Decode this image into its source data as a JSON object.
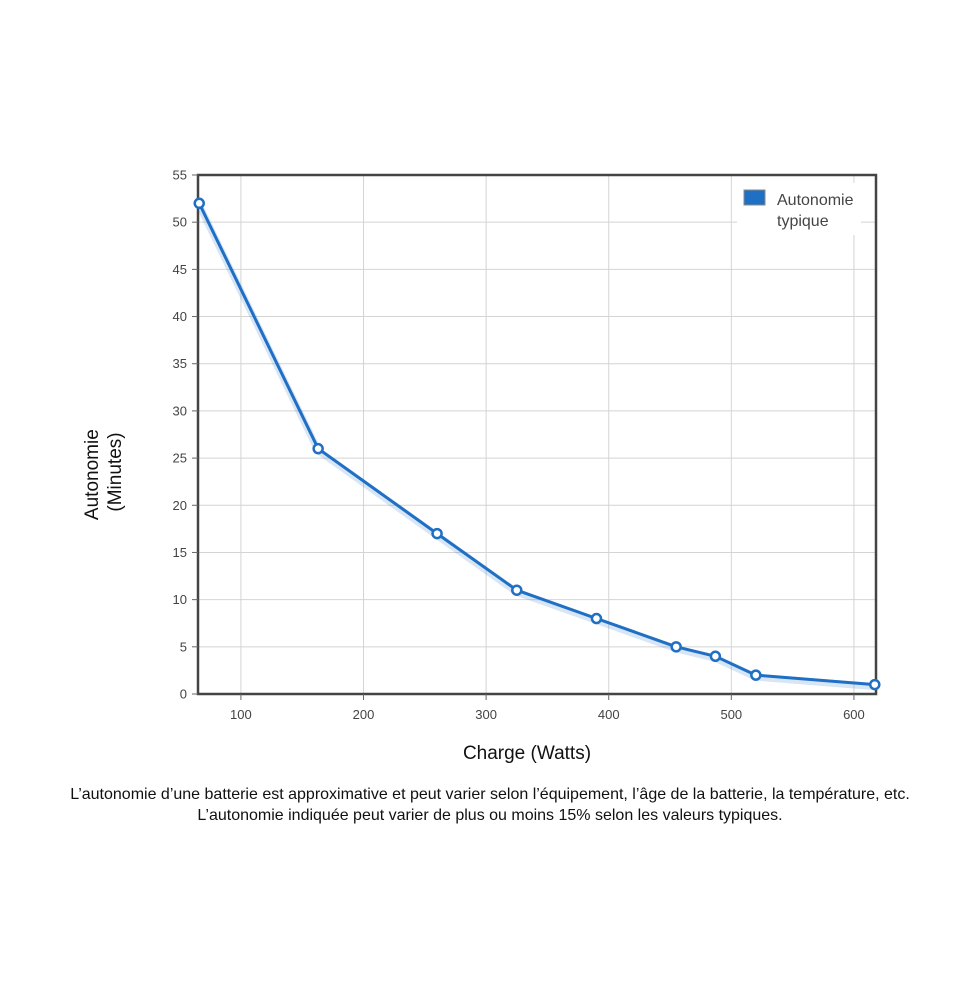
{
  "chart_data": {
    "type": "line",
    "xlabel": "Charge (Watts)",
    "ylabel_lines": [
      "Autonomie",
      "(Minutes)"
    ],
    "xlim": [
      65,
      618
    ],
    "ylim": [
      0,
      55
    ],
    "x_ticks": [
      100,
      200,
      300,
      400,
      500,
      600
    ],
    "y_ticks": [
      0,
      5,
      10,
      15,
      20,
      25,
      30,
      35,
      40,
      45,
      50,
      55
    ],
    "grid": true,
    "legend_position": "top-right",
    "series": [
      {
        "name": "Autonomie typique",
        "name_lines": [
          "Autonomie",
          "typique"
        ],
        "color": "#1f6fc5",
        "points": [
          {
            "x": 66,
            "y": 52
          },
          {
            "x": 163,
            "y": 26
          },
          {
            "x": 260,
            "y": 17
          },
          {
            "x": 325,
            "y": 11
          },
          {
            "x": 390,
            "y": 8
          },
          {
            "x": 455,
            "y": 5
          },
          {
            "x": 487,
            "y": 4
          },
          {
            "x": 520,
            "y": 2
          },
          {
            "x": 617,
            "y": 1
          }
        ]
      }
    ]
  },
  "caption": "L’autonomie d’une batterie est approximative et peut varier selon l’équipement, l’âge de la batterie, la température, etc. L’autonomie indiquée peut varier de plus ou moins 15% selon les valeurs typiques."
}
